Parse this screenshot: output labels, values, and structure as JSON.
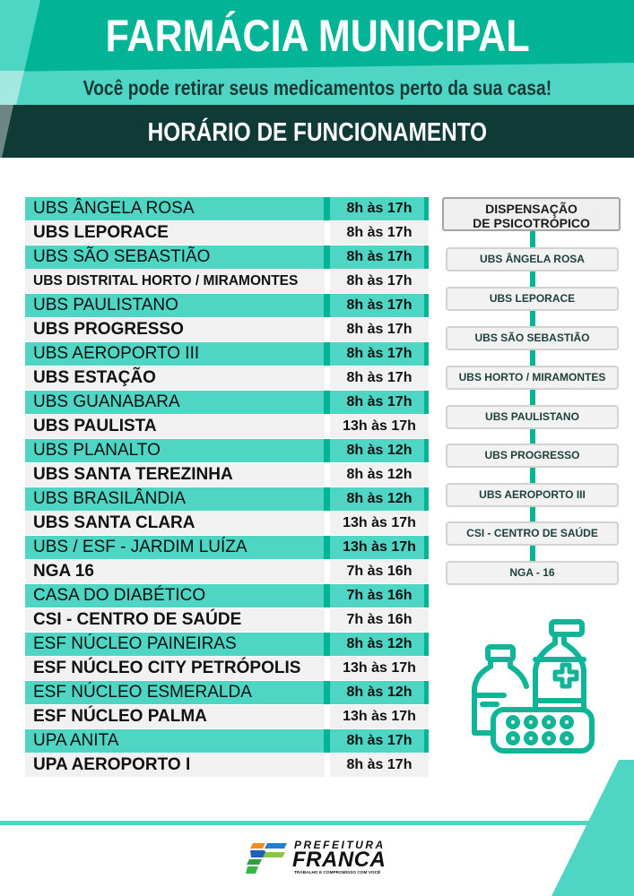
{
  "header": {
    "title": "FARMÁCIA MUNICIPAL",
    "subtitle": "Você pode retirar seus medicamentos perto da sua casa!",
    "section_title": "HORÁRIO DE FUNCIONAMENTO"
  },
  "schedule": [
    {
      "name": "UBS ÂNGELA ROSA",
      "hours": "8h às 17h",
      "style": "teal"
    },
    {
      "name": "UBS LEPORACE",
      "hours": "8h às 17h",
      "style": "plain"
    },
    {
      "name": "UBS SÃO SEBASTIÃO",
      "hours": "8h às 17h",
      "style": "teal"
    },
    {
      "name": "UBS DISTRITAL HORTO / MIRAMONTES",
      "hours": "8h às 17h",
      "style": "plain"
    },
    {
      "name": "UBS PAULISTANO",
      "hours": "8h às 17h",
      "style": "teal"
    },
    {
      "name": "UBS PROGRESSO",
      "hours": "8h às 17h",
      "style": "plain"
    },
    {
      "name": "UBS AEROPORTO III",
      "hours": "8h às 17h",
      "style": "teal"
    },
    {
      "name": "UBS ESTAÇÃO",
      "hours": "8h às 17h",
      "style": "plain"
    },
    {
      "name": "UBS GUANABARA",
      "hours": "8h às 17h",
      "style": "teal"
    },
    {
      "name": "UBS PAULISTA",
      "hours": "13h às 17h",
      "style": "plain"
    },
    {
      "name": "UBS PLANALTO",
      "hours": "8h às 12h",
      "style": "teal"
    },
    {
      "name": "UBS SANTA TEREZINHA",
      "hours": "8h às 12h",
      "style": "plain"
    },
    {
      "name": "UBS BRASILÂNDIA",
      "hours": "8h às 12h",
      "style": "teal"
    },
    {
      "name": "UBS SANTA CLARA",
      "hours": "13h às 17h",
      "style": "plain"
    },
    {
      "name": "UBS / ESF - JARDIM LUÍZA",
      "hours": "13h às 17h",
      "style": "teal"
    },
    {
      "name": "NGA 16",
      "hours": "7h às 16h",
      "style": "plain"
    },
    {
      "name": "CASA DO DIABÉTICO",
      "hours": "7h às 16h",
      "style": "teal"
    },
    {
      "name": "CSI - CENTRO DE SAÚDE",
      "hours": "7h às 16h",
      "style": "plain"
    },
    {
      "name": "ESF NÚCLEO PAINEIRAS",
      "hours": "8h às 12h",
      "style": "teal"
    },
    {
      "name": "ESF NÚCLEO CITY PETRÓPOLIS",
      "hours": "13h às 17h",
      "style": "plain"
    },
    {
      "name": "ESF NÚCLEO ESMERALDA",
      "hours": "8h às 12h",
      "style": "teal"
    },
    {
      "name": "ESF NÚCLEO PALMA",
      "hours": "13h às 17h",
      "style": "plain"
    },
    {
      "name": "UPA ANITA",
      "hours": "8h às 17h",
      "style": "teal"
    },
    {
      "name": "UPA AEROPORTO I",
      "hours": "8h às 17h",
      "style": "plain"
    }
  ],
  "psychotropic": {
    "title_line1": "DISPENSAÇÃO",
    "title_line2": "DE PSICOTRÓPICO",
    "items": [
      "UBS ÂNGELA ROSA",
      "UBS LEPORACE",
      "UBS SÃO SEBASTIÃO",
      "UBS HORTO / MIRAMONTES",
      "UBS PAULISTANO",
      "UBS PROGRESSO",
      "UBS AEROPORTO III",
      "CSI - CENTRO DE SAÚDE",
      "NGA - 16"
    ]
  },
  "illustration": {
    "icon": "medicine-bottles-pills-icon",
    "color": "#10b597"
  },
  "footer": {
    "logo_line1": "PREFEITURA",
    "logo_line2": "FRANCA",
    "logo_tagline": "TRABALHO E COMPROMISSO COM VOCÊ"
  },
  "colors": {
    "teal": "#00b495",
    "light_teal": "#4fd5c4",
    "dark": "#0f3a36",
    "row_gray": "#f1f1f1"
  }
}
